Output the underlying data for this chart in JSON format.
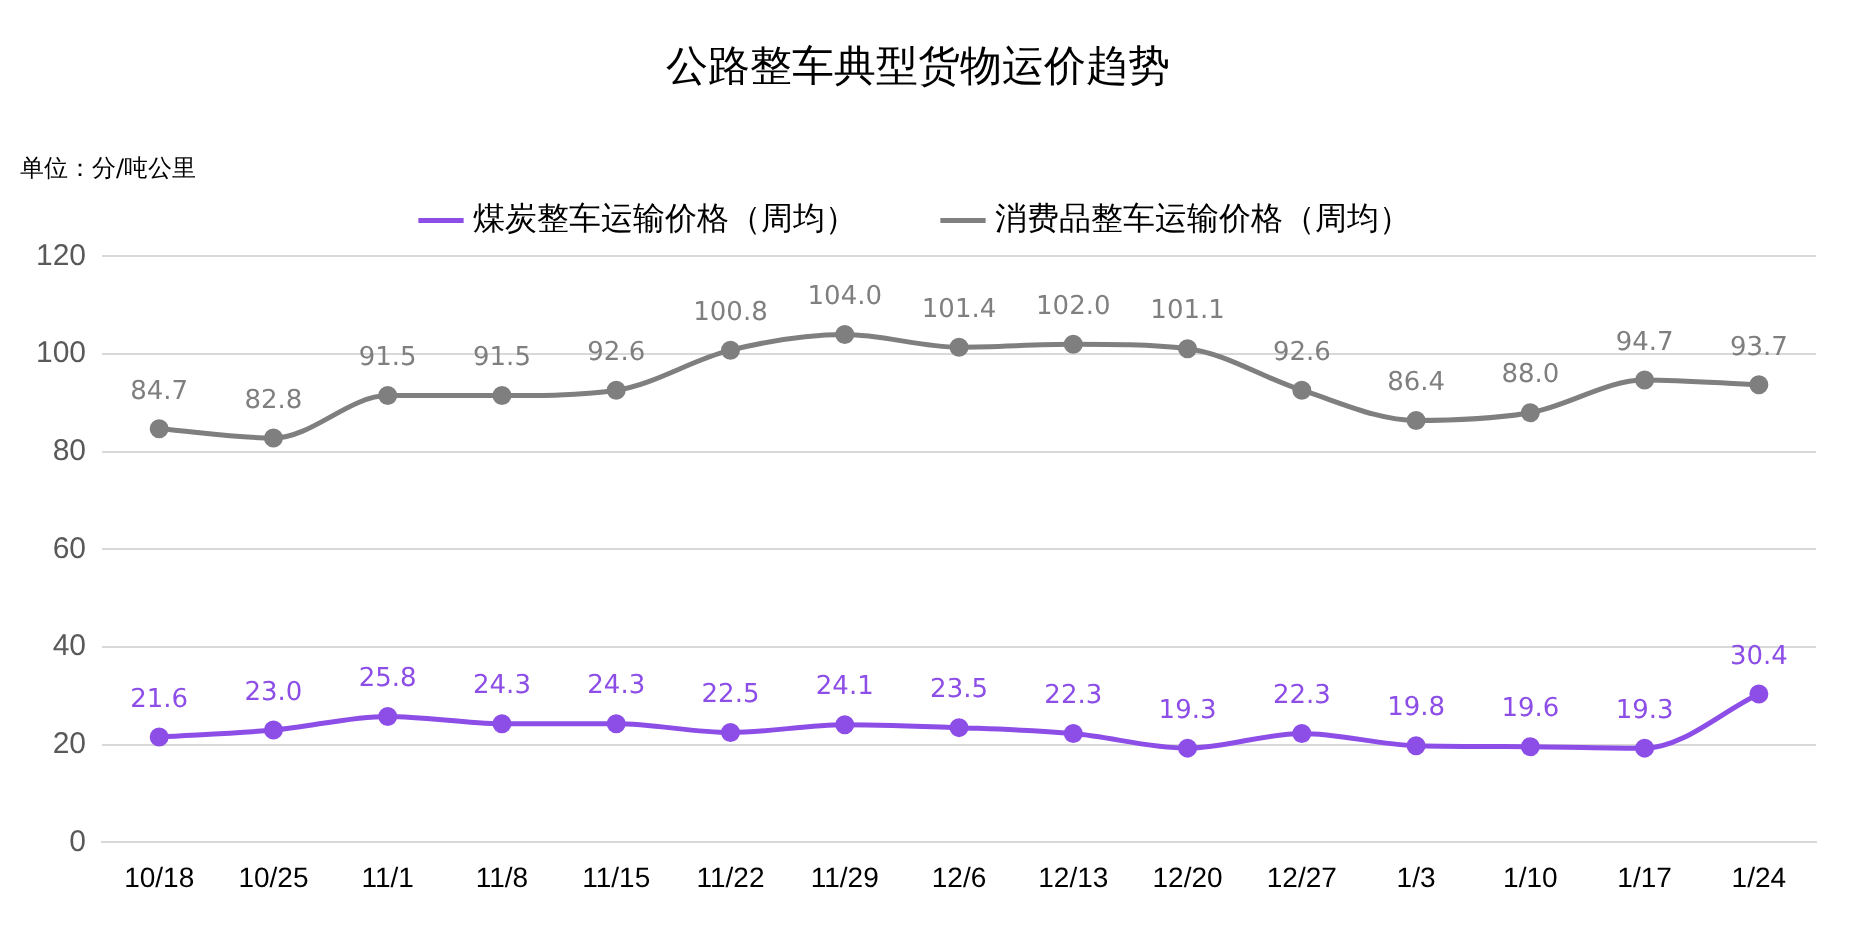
{
  "chart_data": {
    "type": "line",
    "title": "公路整车典型货物运价趋势",
    "annotations": [
      "单位：分/吨公里"
    ],
    "categories": [
      "10/18",
      "10/25",
      "11/1",
      "11/8",
      "11/15",
      "11/22",
      "11/29",
      "12/6",
      "12/13",
      "12/20",
      "12/27",
      "1/3",
      "1/10",
      "1/17",
      "1/24"
    ],
    "series": [
      {
        "name": "煤炭整车运输价格（周均）",
        "color": "#8c4ee6",
        "values": [
          21.6,
          23.0,
          25.8,
          24.3,
          24.3,
          22.5,
          24.1,
          23.5,
          22.3,
          19.3,
          22.3,
          19.8,
          19.6,
          19.3,
          30.4
        ],
        "value_labels": [
          "21.6",
          "23.0",
          "25.8",
          "24.3",
          "24.3",
          "22.5",
          "24.1",
          "23.5",
          "22.3",
          "19.3",
          "22.3",
          "19.8",
          "19.6",
          "19.3",
          "30.4"
        ]
      },
      {
        "name": "消费品整车运输价格（周均）",
        "color": "#7f7f7f",
        "values": [
          84.7,
          82.8,
          91.5,
          91.5,
          92.6,
          100.8,
          104.0,
          101.4,
          102.0,
          101.1,
          92.6,
          86.4,
          88.0,
          94.7,
          93.7
        ],
        "value_labels": [
          "84.7",
          "82.8",
          "91.5",
          "91.5",
          "92.6",
          "100.8",
          "104.0",
          "101.4",
          "102.0",
          "101.1",
          "92.6",
          "86.4",
          "88.0",
          "94.7",
          "93.7"
        ]
      }
    ],
    "ylim": [
      0,
      120
    ],
    "yticks": [
      0,
      20,
      40,
      60,
      80,
      100,
      120
    ],
    "grid": "y",
    "legend": "top",
    "marker": "circle",
    "line_style": "solid"
  }
}
